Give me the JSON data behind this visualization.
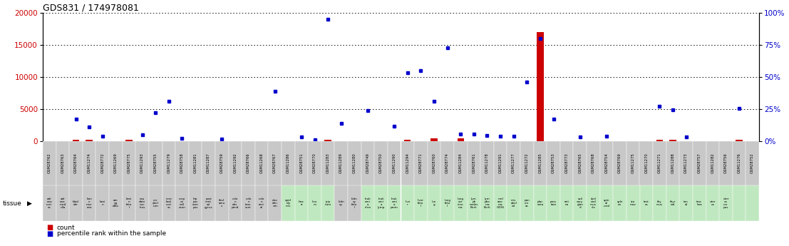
{
  "title": "GDS831 / 174978081",
  "gsm_ids": [
    "GSM28762",
    "GSM28763",
    "GSM28764",
    "GSM11274",
    "GSM28772",
    "GSM11269",
    "GSM28775",
    "GSM11293",
    "GSM28755",
    "GSM11279",
    "GSM28758",
    "GSM11281",
    "GSM11287",
    "GSM28759",
    "GSM11292",
    "GSM28766",
    "GSM11268",
    "GSM28767",
    "GSM11286",
    "GSM28751",
    "GSM28770",
    "GSM11283",
    "GSM11289",
    "GSM11280",
    "GSM28749",
    "GSM28750",
    "GSM11290",
    "GSM11294",
    "GSM28771",
    "GSM28760",
    "GSM28774",
    "GSM11284",
    "GSM28761",
    "GSM11278",
    "GSM11291",
    "GSM11277",
    "GSM11272",
    "GSM11285",
    "GSM28753",
    "GSM28773",
    "GSM28765",
    "GSM28768",
    "GSM28754",
    "GSM28769",
    "GSM11275",
    "GSM11270",
    "GSM11271",
    "GSM11288",
    "GSM11273",
    "GSM28757",
    "GSM11282",
    "GSM28756",
    "GSM11276",
    "GSM28752"
  ],
  "count_values": [
    0,
    0,
    200,
    200,
    0,
    0,
    200,
    0,
    0,
    0,
    0,
    0,
    0,
    0,
    0,
    0,
    0,
    0,
    0,
    0,
    0,
    200,
    0,
    0,
    0,
    0,
    0,
    200,
    0,
    500,
    0,
    500,
    0,
    0,
    0,
    0,
    0,
    17000,
    0,
    0,
    0,
    0,
    0,
    0,
    0,
    0,
    200,
    200,
    0,
    0,
    0,
    0,
    200,
    0
  ],
  "percentile_values": [
    0,
    0,
    3500,
    2200,
    800,
    0,
    0,
    1000,
    4400,
    6200,
    400,
    0,
    0,
    300,
    0,
    0,
    0,
    7800,
    0,
    700,
    200,
    19000,
    2800,
    0,
    4800,
    0,
    2300,
    10700,
    11000,
    6200,
    14500,
    1100,
    1100,
    900,
    800,
    800,
    9200,
    16000,
    3400,
    0,
    700,
    0,
    800,
    0,
    0,
    0,
    5400,
    4900,
    700,
    0,
    0,
    0,
    5100,
    0
  ],
  "tissue_texts": [
    "adr\nena\ncort\nex",
    "adr\nena\nmed\nulla",
    "blad\nder",
    "bon\ne\nmar\nrow",
    "brai\nn",
    "am\nyg\ndala",
    "brai\nn\nfeta\nl",
    "cau\ndate\nnuc\nleus",
    "cer\nebel\nlum",
    "cere\nbral\ncort\nex",
    "corp\nus\ncall\nosun",
    "hip\npoc\ncam\npus",
    "post\ncent\nral\ngyrus",
    "thal\namu\ns",
    "colo\nn\ndes\npend",
    "colo\nn\ntran\nsver",
    "colo\nn\nrect\nal",
    "duo\nden\num",
    "epid\nidy\nmis",
    "hea\nrt",
    "ileu\nm",
    "jeju\nnum",
    "kidn\ney",
    "kidn\ney\nfeta\nl",
    "leuk\nemi\na\nchro",
    "leuk\nemi\na\nlymp",
    "leuk\nemi\na\nprom",
    "live\nr",
    "liver\nfeta\nl",
    "lun\ng",
    "lung\nfeta\nl",
    "lung\ncar\ncino\nma",
    "lym\nph\nnodes\nBurk",
    "lym\npho\nma\nBurk",
    "mel\nano\nma\nG336",
    "mis\nabel\ned",
    "pan\ncre\nas",
    "plac\nenta",
    "pros\ntate",
    "reti\nna",
    "sali\nvary\nglan\nd",
    "skel\netal\nmus\ncle",
    "spin\nal\ncord",
    "sple\nen",
    "sto\nmac",
    "test\nes",
    "thy\nmus",
    "thyr\noid",
    "ton\nsil",
    "trac\nhea",
    "uter\nus",
    "uter\nus\ncor\npus"
  ],
  "tissue_bg": [
    "#c8c8c8",
    "#c8c8c8",
    "#c8c8c8",
    "#c8c8c8",
    "#c8c8c8",
    "#c8c8c8",
    "#c8c8c8",
    "#c8c8c8",
    "#c8c8c8",
    "#c8c8c8",
    "#c8c8c8",
    "#c8c8c8",
    "#c8c8c8",
    "#c8c8c8",
    "#c8c8c8",
    "#c8c8c8",
    "#c8c8c8",
    "#c8c8c8",
    "#c0e8c0",
    "#c0e8c0",
    "#c0e8c0",
    "#c0e8c0",
    "#c8c8c8",
    "#c8c8c8",
    "#c0e8c0",
    "#c0e8c0",
    "#c0e8c0",
    "#c0e8c0",
    "#c0e8c0",
    "#c0e8c0",
    "#c0e8c0",
    "#c0e8c0",
    "#c0e8c0",
    "#c0e8c0",
    "#c0e8c0",
    "#c0e8c0",
    "#c0e8c0",
    "#c0e8c0",
    "#c0e8c0",
    "#c0e8c0",
    "#c0e8c0",
    "#c0e8c0",
    "#c0e8c0",
    "#c0e8c0",
    "#c0e8c0",
    "#c0e8c0",
    "#c0e8c0",
    "#c0e8c0",
    "#c0e8c0",
    "#c0e8c0",
    "#c0e8c0",
    "#c0e8c0"
  ],
  "ylim_left": [
    0,
    20000
  ],
  "ylim_right": [
    0,
    100
  ],
  "yticks_left": [
    0,
    5000,
    10000,
    15000,
    20000
  ],
  "yticks_right": [
    0,
    25,
    50,
    75,
    100
  ],
  "left_color": "#cc0000",
  "right_color": "#0000cc",
  "bar_color": "#cc0000",
  "dot_color": "#0000cc",
  "bg_color": "#ffffff"
}
